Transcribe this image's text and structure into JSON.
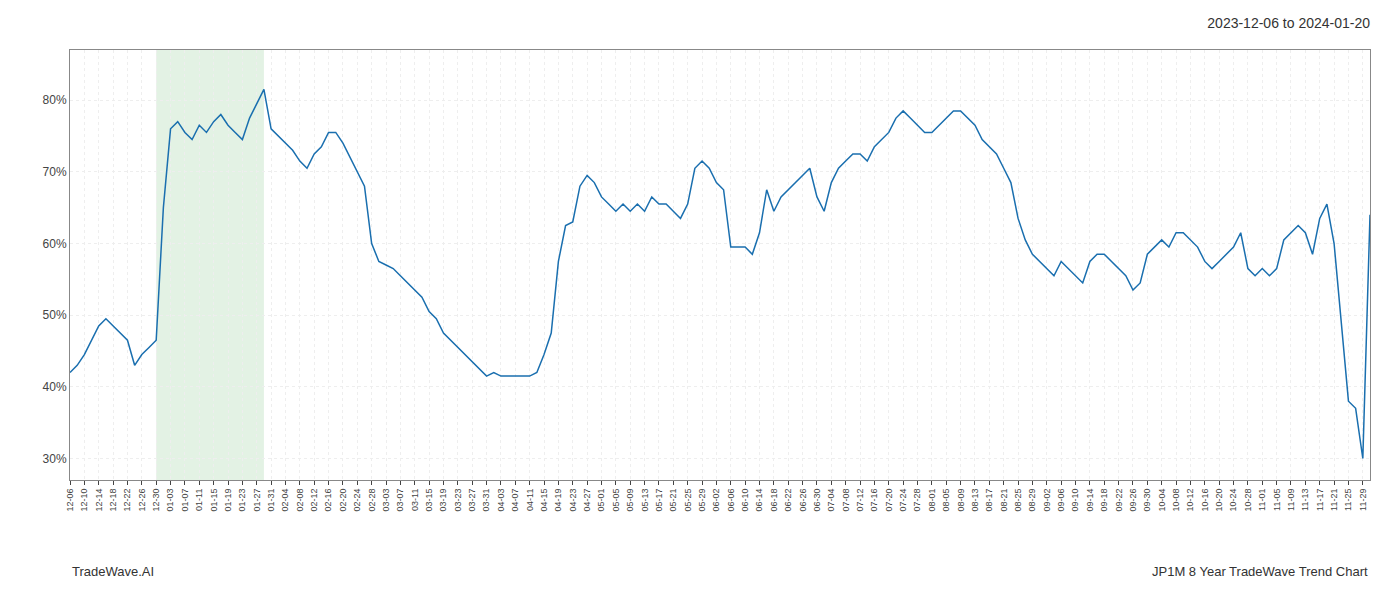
{
  "chart_data": {
    "type": "line",
    "title": "2023-12-06 to 2024-01-20",
    "annotations": [
      "TradeWave.AI",
      "JP1M 8 Year TradeWave Trend Chart"
    ],
    "color": "#1a6faf",
    "grid": true,
    "line_style": "solid",
    "highlight": {
      "from": 12,
      "to": 27,
      "color": "#c8e6c9"
    },
    "ylim": [
      27,
      87
    ],
    "yticks": [
      {
        "value": 30,
        "label": "30%"
      },
      {
        "value": 40,
        "label": "40%"
      },
      {
        "value": 50,
        "label": "50%"
      },
      {
        "value": 60,
        "label": "60%"
      },
      {
        "value": 70,
        "label": "70%"
      },
      {
        "value": 80,
        "label": "80%"
      }
    ],
    "categories": [
      "12-06",
      null,
      "12-10",
      null,
      "12-14",
      null,
      "12-18",
      null,
      "12-22",
      null,
      "12-26",
      null,
      "12-30",
      null,
      "01-03",
      null,
      "01-07",
      null,
      "01-11",
      null,
      "01-15",
      null,
      "01-19",
      null,
      "01-23",
      null,
      "01-27",
      null,
      "01-31",
      null,
      "02-04",
      null,
      "02-08",
      null,
      "02-12",
      null,
      "02-16",
      null,
      "02-20",
      null,
      "02-24",
      null,
      "02-28",
      null,
      "03-03",
      null,
      "03-07",
      null,
      "03-11",
      null,
      "03-15",
      null,
      "03-19",
      null,
      "03-23",
      null,
      "03-27",
      null,
      "03-31",
      null,
      "04-03",
      null,
      "04-07",
      null,
      "04-11",
      null,
      "04-15",
      null,
      "04-19",
      null,
      "04-23",
      null,
      "04-27",
      null,
      "05-01",
      null,
      "05-05",
      null,
      "05-09",
      null,
      "05-13",
      null,
      "05-17",
      null,
      "05-21",
      null,
      "05-25",
      null,
      "05-29",
      null,
      "06-02",
      null,
      "06-06",
      null,
      "06-10",
      null,
      "06-14",
      null,
      "06-18",
      null,
      "06-22",
      null,
      "06-26",
      null,
      "06-30",
      null,
      "07-04",
      null,
      "07-08",
      null,
      "07-12",
      null,
      "07-16",
      null,
      "07-20",
      null,
      "07-24",
      null,
      "07-28",
      null,
      "08-01",
      null,
      "08-05",
      null,
      "08-09",
      null,
      "08-13",
      null,
      "08-17",
      null,
      "08-21",
      null,
      "08-25",
      null,
      "08-29",
      null,
      "09-02",
      null,
      "09-06",
      null,
      "09-10",
      null,
      "09-14",
      null,
      "09-18",
      null,
      "09-22",
      null,
      "09-26",
      null,
      "09-30",
      null,
      "10-04",
      null,
      "10-08",
      null,
      "10-12",
      null,
      "10-16",
      null,
      "10-20",
      null,
      "10-24",
      null,
      "10-28",
      null,
      "11-01",
      null,
      "11-05",
      null,
      "11-09",
      null,
      "11-13",
      null,
      "11-17",
      null,
      "11-21",
      null,
      "11-25",
      null,
      "11-29",
      null
    ],
    "values": [
      42.0,
      43.0,
      44.5,
      46.5,
      48.5,
      49.5,
      48.5,
      47.5,
      46.5,
      43.0,
      44.5,
      45.5,
      46.5,
      65.0,
      76.0,
      77.0,
      75.5,
      74.5,
      76.5,
      75.5,
      77.0,
      78.0,
      76.5,
      75.5,
      74.5,
      77.5,
      79.5,
      81.5,
      76.0,
      75.0,
      74.0,
      73.0,
      71.5,
      70.5,
      72.5,
      73.5,
      75.5,
      75.5,
      74.0,
      72.0,
      70.0,
      68.0,
      60.0,
      57.5,
      57.0,
      56.5,
      55.5,
      54.5,
      53.5,
      52.5,
      50.5,
      49.5,
      47.5,
      46.5,
      45.5,
      44.5,
      43.5,
      42.5,
      41.5,
      42.0,
      41.5,
      41.5,
      41.5,
      41.5,
      41.5,
      42.0,
      44.5,
      47.5,
      57.5,
      62.5,
      63.0,
      68.0,
      69.5,
      68.5,
      66.5,
      65.5,
      64.5,
      65.5,
      64.5,
      65.5,
      64.5,
      66.5,
      65.5,
      65.5,
      64.5,
      63.5,
      65.5,
      70.5,
      71.5,
      70.5,
      68.5,
      67.5,
      59.5,
      59.5,
      59.5,
      58.5,
      61.5,
      67.5,
      64.5,
      66.5,
      67.5,
      68.5,
      69.5,
      70.5,
      66.5,
      64.5,
      68.5,
      70.5,
      71.5,
      72.5,
      72.5,
      71.5,
      73.5,
      74.5,
      75.5,
      77.5,
      78.5,
      77.5,
      76.5,
      75.5,
      75.5,
      76.5,
      77.5,
      78.5,
      78.5,
      77.5,
      76.5,
      74.5,
      73.5,
      72.5,
      70.5,
      68.5,
      63.5,
      60.5,
      58.5,
      57.5,
      56.5,
      55.5,
      57.5,
      56.5,
      55.5,
      54.5,
      57.5,
      58.5,
      58.5,
      57.5,
      56.5,
      55.5,
      53.5,
      54.5,
      58.5,
      59.5,
      60.5,
      59.5,
      61.5,
      61.5,
      60.5,
      59.5,
      57.5,
      56.5,
      57.5,
      58.5,
      59.5,
      61.5,
      56.5,
      55.5,
      56.5,
      55.5,
      56.5,
      60.5,
      61.5,
      62.5,
      61.5,
      58.5,
      63.5,
      65.5,
      60.0,
      49.0,
      38.0,
      37.0,
      30.0,
      64.0
    ]
  }
}
